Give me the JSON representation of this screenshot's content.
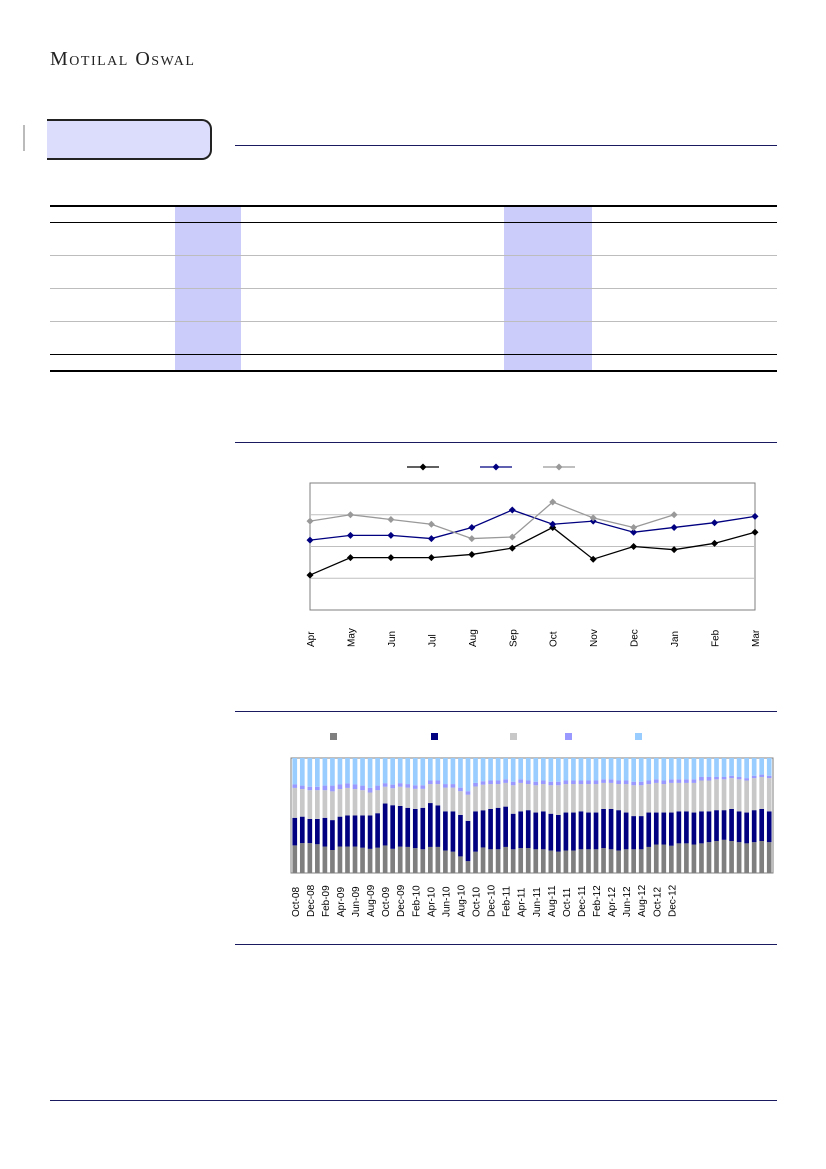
{
  "header": {
    "logo_text": "Motilal Oswal"
  },
  "colors": {
    "accent": "#1a1a60",
    "tab_fill": "#dcdcfc",
    "column_highlight": "#ccccfb",
    "series_black": "#000000",
    "series_navy": "#000080",
    "series_grey": "#999999",
    "stack_grey": "#7f7f7f",
    "stack_navy": "#000080",
    "stack_light_grey": "#c8c8c8",
    "stack_lavender": "#9999ff",
    "stack_light_blue": "#99ccff"
  },
  "chart_data": [
    {
      "type": "line",
      "title": "",
      "categories": [
        "Apr",
        "May",
        "Jun",
        "Jul",
        "Aug",
        "Sep",
        "Oct",
        "Nov",
        "Dec",
        "Jan",
        "Feb",
        "Mar"
      ],
      "ylim": [
        0,
        4
      ],
      "grid": true,
      "legend": "top",
      "series": [
        {
          "color": "#000000",
          "values": [
            1.1,
            1.65,
            1.65,
            1.65,
            1.75,
            1.95,
            2.6,
            1.6,
            2.0,
            1.9,
            2.1,
            2.45
          ]
        },
        {
          "color": "#000080",
          "values": [
            2.2,
            2.35,
            2.35,
            2.25,
            2.6,
            3.15,
            2.7,
            2.8,
            2.45,
            2.6,
            2.75,
            2.95
          ]
        },
        {
          "color": "#999999",
          "values": [
            2.8,
            3.0,
            2.85,
            2.7,
            2.25,
            2.3,
            3.4,
            2.9,
            2.6,
            3.0,
            null,
            null
          ]
        }
      ]
    },
    {
      "type": "bar",
      "stacked": true,
      "percent": true,
      "title": "",
      "tick_labels": [
        "Oct-08",
        "Dec-08",
        "Feb-09",
        "Apr-09",
        "Jun-09",
        "Aug-09",
        "Oct-09",
        "Dec-09",
        "Feb-10",
        "Apr-10",
        "Jun-10",
        "Aug-10",
        "Oct-10",
        "Dec-10",
        "Feb-11",
        "Apr-11",
        "Jun-11",
        "Aug-11",
        "Oct-11",
        "Dec-11",
        "Feb-12",
        "Apr-12",
        "Jun-12",
        "Aug-12",
        "Oct-12",
        "Dec-12"
      ],
      "legend": "top",
      "ylim": [
        0,
        100
      ],
      "series": [
        {
          "color": "#7f7f7f",
          "values": [
            24,
            26,
            26,
            25,
            23,
            20,
            23,
            23,
            23,
            22,
            21,
            22,
            23,
            20,
            22,
            22,
            21,
            20,
            22,
            22,
            19,
            18,
            14,
            10,
            18,
            22,
            20,
            20,
            22,
            20,
            21,
            21,
            20,
            20,
            19,
            18,
            19,
            19,
            20,
            20,
            20,
            21,
            20,
            19,
            20,
            20,
            20,
            22,
            24,
            24,
            23,
            25,
            25,
            24,
            25,
            26,
            27,
            28,
            27,
            26,
            25,
            26,
            27,
            26
          ]
        },
        {
          "color": "#000080",
          "values": [
            24,
            23,
            21,
            22,
            25,
            26,
            26,
            27,
            27,
            28,
            29,
            30,
            35,
            36,
            34,
            33,
            33,
            35,
            37,
            35,
            33,
            34,
            35,
            34,
            34,
            32,
            34,
            35,
            34,
            30,
            31,
            32,
            31,
            32,
            31,
            31,
            32,
            32,
            32,
            31,
            31,
            33,
            34,
            34,
            31,
            28,
            28,
            29,
            27,
            27,
            28,
            27,
            27,
            27,
            27,
            26,
            26,
            25,
            27,
            26,
            26,
            27,
            27,
            26
          ]
        },
        {
          "color": "#c8c8c8",
          "values": [
            26,
            24,
            25,
            25,
            24,
            25,
            24,
            24,
            23,
            22,
            20,
            20,
            14,
            14,
            16,
            17,
            17,
            16,
            16,
            18,
            20,
            20,
            20,
            22,
            21,
            22,
            21,
            20,
            20,
            24,
            24,
            22,
            23,
            23,
            24,
            25,
            24,
            24,
            23,
            24,
            24,
            22,
            22,
            22,
            24,
            26,
            26,
            24,
            25,
            24,
            25,
            24,
            24,
            25,
            26,
            26,
            26,
            26,
            26,
            27,
            27,
            27,
            27,
            28
          ]
        },
        {
          "color": "#9999ff",
          "values": [
            3,
            3,
            3,
            3,
            4,
            5,
            4,
            4,
            4,
            4,
            4,
            4,
            3,
            3,
            3,
            3,
            3,
            3,
            3,
            3,
            3,
            3,
            3,
            3,
            3,
            3,
            3,
            3,
            3,
            3,
            3,
            3,
            3,
            3,
            3,
            3,
            3,
            3,
            3,
            3,
            3,
            3,
            3,
            3,
            3,
            3,
            3,
            3,
            3,
            3,
            3,
            3,
            3,
            3,
            3,
            3,
            2,
            2,
            2,
            2,
            2,
            2,
            2,
            2
          ]
        },
        {
          "color": "#99ccff",
          "values": [
            23,
            24,
            25,
            25,
            24,
            24,
            23,
            22,
            23,
            24,
            26,
            24,
            21,
            22,
            21,
            22,
            23,
            23,
            19,
            19,
            22,
            22,
            25,
            28,
            21,
            20,
            19,
            19,
            18,
            20,
            18,
            19,
            20,
            19,
            20,
            20,
            19,
            19,
            19,
            19,
            19,
            18,
            18,
            19,
            19,
            20,
            20,
            19,
            18,
            19,
            18,
            18,
            18,
            18,
            16,
            16,
            16,
            16,
            15,
            16,
            17,
            15,
            14,
            15
          ]
        }
      ]
    }
  ]
}
